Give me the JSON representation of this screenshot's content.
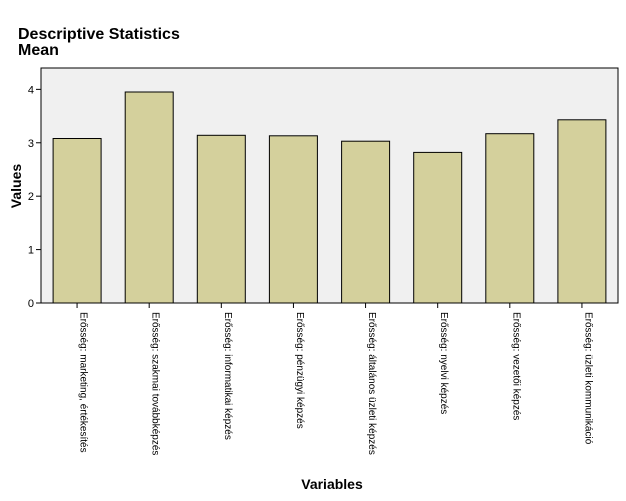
{
  "chart_data": {
    "type": "bar",
    "title": "Descriptive Statistics",
    "subtitle": "Mean",
    "xlabel": "Variables",
    "ylabel": "Values",
    "ylim": [
      0,
      4.4
    ],
    "yticks": [
      0,
      1,
      2,
      3,
      4
    ],
    "categories": [
      "Erősség: marketing, értékesítés",
      "Erősség: szakmai továbbképzés",
      "Erősség: informatikai képzés",
      "Erősség: pénzügyi képzés",
      "Erősség: általános üzleti képzés",
      "Erősség: nyelvi képzés",
      "Erősség: vezetői képzés",
      "Erősség: üzleti kommunikáció"
    ],
    "values": [
      3.08,
      3.95,
      3.14,
      3.13,
      3.03,
      2.82,
      3.17,
      3.43
    ],
    "grid": false,
    "colors": {
      "bar_fill": "#d4d09c",
      "bar_stroke": "#000000",
      "plot_background": "#f0f0f0"
    }
  }
}
